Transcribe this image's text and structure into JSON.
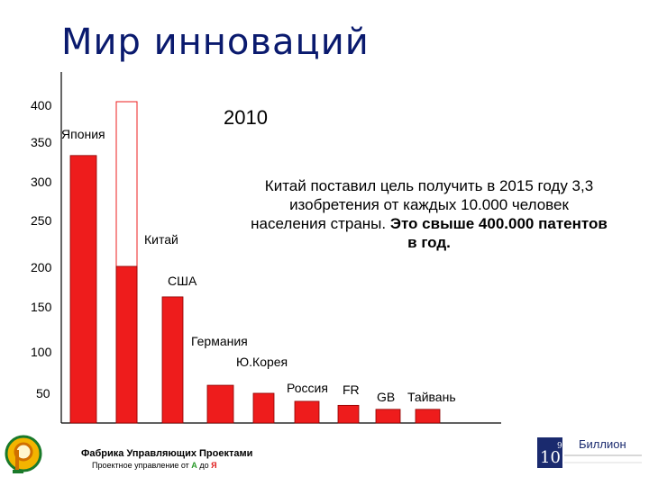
{
  "title": "Мир инноваций",
  "year_label": "2010",
  "note": {
    "line1": "Китай поставил цель получить в 2015 году 3,3",
    "line2": "изобретения от каждых 10.000 человек",
    "line3_normal": "населения страны.",
    "line3_bold": "Это свыше 400.000 патентов",
    "line4_bold": "в год."
  },
  "footer": {
    "brand": "Фабрика Управляющих Проектами",
    "sub_prefix": "Проектное управление от",
    "sub_a": "А",
    "sub_mid": "до",
    "sub_ya": "Я"
  },
  "right_logo": {
    "number": "10",
    "sup": "9",
    "text": "Биллион"
  },
  "page_number": "9",
  "colors": {
    "bar": "#ee1c1c",
    "bar_outline": "#8b0000",
    "title": "#0a1a6e"
  },
  "chart_data": {
    "type": "bar",
    "ylim": [
      0,
      400
    ],
    "yticks": [
      50,
      100,
      150,
      200,
      250,
      300,
      350,
      400
    ],
    "grid": false,
    "categories": [
      "Япония",
      "Китай",
      "США",
      "Германия",
      "Ю.Корея",
      "Россия",
      "FR",
      "GB",
      "Тайвань"
    ],
    "values": [
      333,
      195,
      157,
      47,
      37,
      27,
      22,
      17,
      17
    ],
    "target": {
      "category": "Китай",
      "value": 400
    }
  }
}
